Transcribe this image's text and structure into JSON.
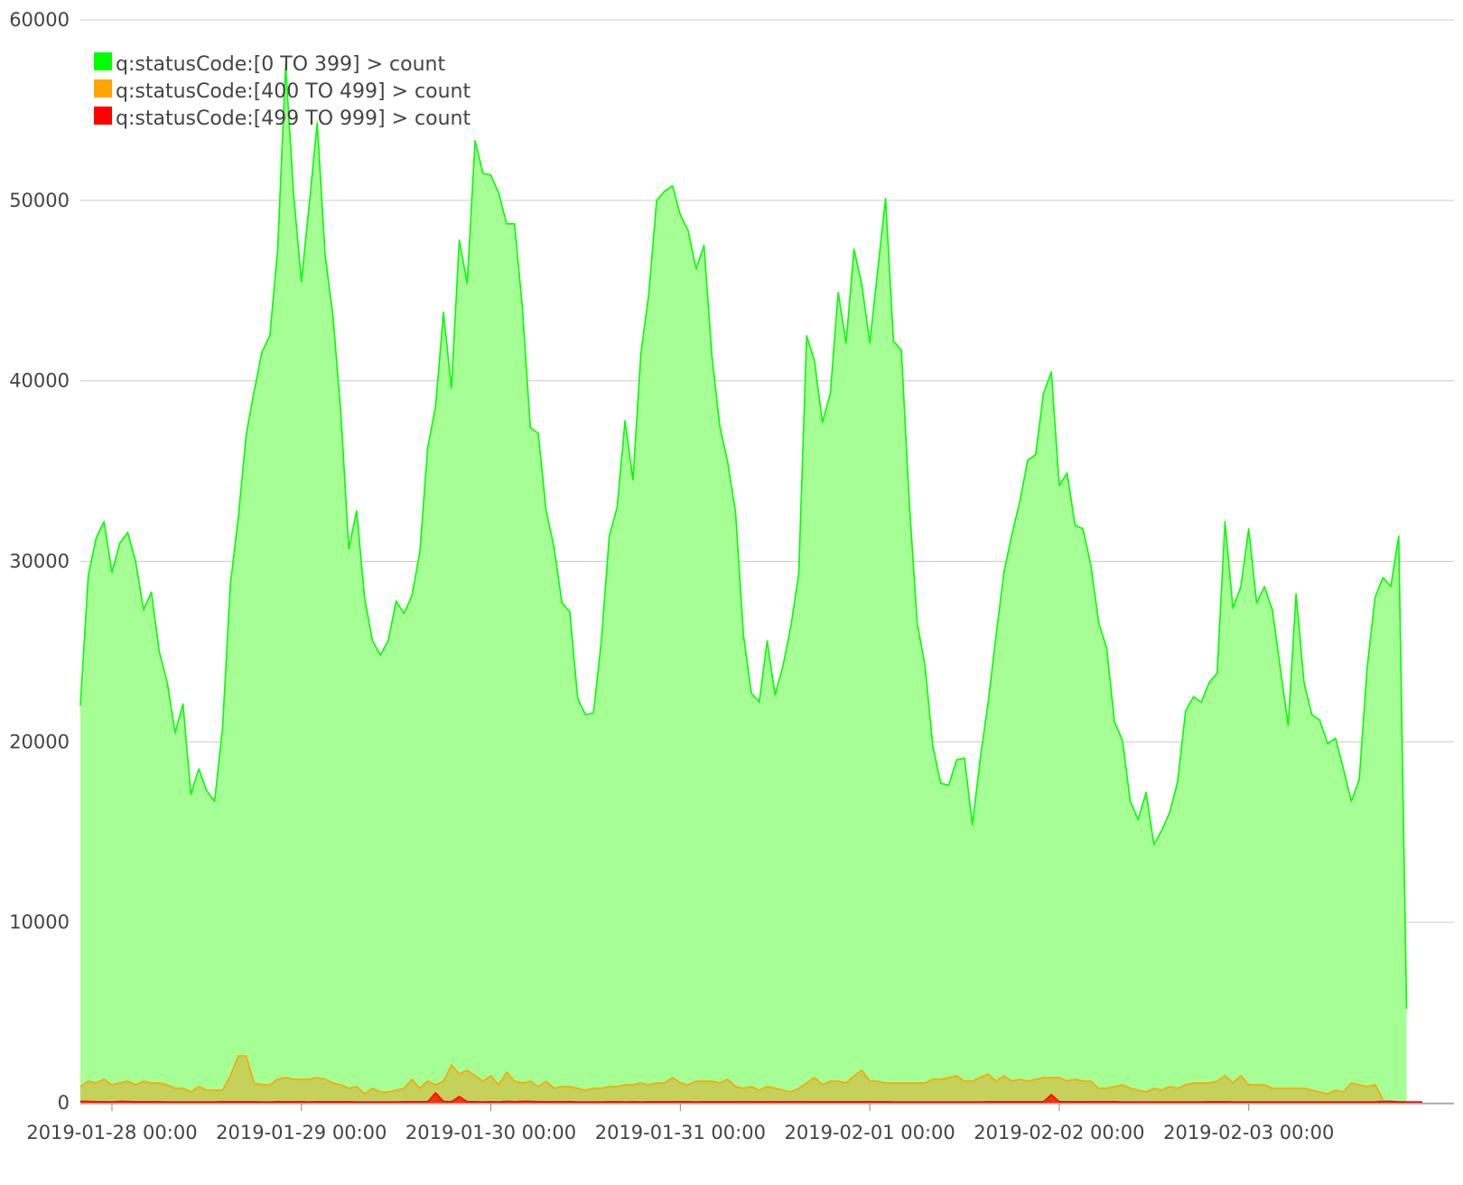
{
  "chart_data": {
    "type": "area",
    "title": "",
    "xlabel": "",
    "ylabel": "",
    "x_start": "2019-01-27 20:00",
    "x_step_hours": 1,
    "xlim": [
      "2019-01-27 20:00",
      "2019-02-04 02:00"
    ],
    "ylim": [
      0,
      60000
    ],
    "yticks": [
      0,
      10000,
      20000,
      30000,
      40000,
      50000,
      60000
    ],
    "xticks": [
      "2019-01-28 00:00",
      "2019-01-29 00:00",
      "2019-01-30 00:00",
      "2019-01-31 00:00",
      "2019-02-01 00:00",
      "2019-02-02 00:00",
      "2019-02-03 00:00"
    ],
    "grid": true,
    "legend_position": "top-left",
    "series": [
      {
        "name": "q:statusCode:[0 TO 399] > count",
        "color": "#00ff00",
        "fill": "#a6ff94",
        "values": [
          22000,
          29200,
          31300,
          32200,
          29400,
          31000,
          31600,
          30000,
          27300,
          28300,
          25000,
          23300,
          20500,
          22100,
          17100,
          18500,
          17300,
          16700,
          20700,
          28700,
          32400,
          37000,
          39400,
          41600,
          42500,
          47300,
          57500,
          50400,
          45500,
          49800,
          54300,
          47000,
          43600,
          38200,
          30700,
          32800,
          28000,
          25600,
          24800,
          25600,
          27800,
          27100,
          28100,
          30500,
          36300,
          38600,
          43800,
          39600,
          47800,
          45400,
          53300,
          51500,
          51400,
          50400,
          48700,
          48700,
          44000,
          37400,
          37100,
          32800,
          30800,
          27700,
          27200,
          22400,
          21500,
          21600,
          25600,
          31400,
          33000,
          37800,
          34500,
          41500,
          44800,
          50000,
          50500,
          50800,
          49200,
          48300,
          46200,
          47500,
          41400,
          37500,
          35500,
          32700,
          25900,
          22700,
          22200,
          25600,
          22600,
          24200,
          26400,
          29300,
          42500,
          41100,
          37700,
          39300,
          44900,
          42100,
          47300,
          45300,
          42100,
          46100,
          50100,
          42200,
          41700,
          33300,
          26600,
          24200,
          19700,
          17700,
          17600,
          19000,
          19100,
          15400,
          19100,
          22200,
          25900,
          29400,
          31500,
          33300,
          35600,
          35900,
          39300,
          40500,
          34200,
          34900,
          32000,
          31800,
          29800,
          26600,
          25200,
          21100,
          20100,
          16700,
          15700,
          17200,
          14300,
          15100,
          16100,
          17800,
          21700,
          22500,
          22200,
          23300,
          23800,
          32200,
          27400,
          28600,
          31800,
          27700,
          28600,
          27300,
          24100,
          20900,
          28200,
          23300,
          21500,
          21200,
          19900,
          20200,
          18500,
          16700,
          17900,
          24100,
          28000,
          29100,
          28600,
          31400,
          5200
        ]
      },
      {
        "name": "q:statusCode:[400 TO 499] > count",
        "color": "#ffa500",
        "fill": "#c4d15a",
        "values": [
          900,
          1200,
          1100,
          1300,
          1000,
          1100,
          1200,
          1000,
          1200,
          1100,
          1100,
          1000,
          800,
          800,
          600,
          900,
          700,
          700,
          700,
          1500,
          2600,
          2600,
          1100,
          1000,
          1000,
          1300,
          1400,
          1300,
          1300,
          1300,
          1400,
          1300,
          1100,
          1000,
          800,
          900,
          500,
          800,
          600,
          600,
          700,
          800,
          1300,
          800,
          1200,
          1000,
          1200,
          2100,
          1600,
          1800,
          1500,
          1200,
          1500,
          1000,
          1700,
          1200,
          1100,
          1200,
          900,
          1200,
          800,
          900,
          900,
          800,
          700,
          800,
          800,
          900,
          900,
          1000,
          1000,
          1100,
          1000,
          1100,
          1100,
          1400,
          1100,
          1000,
          1200,
          1200,
          1200,
          1100,
          1300,
          900,
          800,
          900,
          700,
          900,
          800,
          700,
          600,
          800,
          1100,
          1400,
          1000,
          1200,
          1200,
          1100,
          1500,
          1800,
          1200,
          1200,
          1100,
          1100,
          1100,
          1100,
          1100,
          1100,
          1300,
          1300,
          1400,
          1500,
          1200,
          1200,
          1400,
          1600,
          1200,
          1500,
          1200,
          1300,
          1200,
          1300,
          1400,
          1400,
          1400,
          1200,
          1300,
          1200,
          1200,
          800,
          800,
          900,
          1000,
          800,
          700,
          600,
          800,
          700,
          900,
          800,
          1000,
          1100,
          1100,
          1100,
          1200,
          1500,
          1100,
          1500,
          1000,
          1000,
          1000,
          800,
          800,
          800,
          800,
          800,
          700,
          600,
          500,
          700,
          600,
          1100,
          1000,
          900,
          1000,
          200
        ]
      },
      {
        "name": "q:statusCode:[499 TO 999] > count",
        "color": "#ff0000",
        "fill": "#ff3300",
        "values": [
          80,
          80,
          60,
          60,
          50,
          80,
          70,
          60,
          60,
          60,
          60,
          50,
          50,
          50,
          50,
          50,
          50,
          50,
          60,
          60,
          60,
          60,
          60,
          50,
          50,
          60,
          60,
          60,
          60,
          50,
          60,
          60,
          60,
          60,
          60,
          50,
          50,
          50,
          50,
          50,
          50,
          60,
          60,
          60,
          60,
          550,
          80,
          60,
          350,
          60,
          60,
          50,
          60,
          50,
          80,
          60,
          80,
          80,
          60,
          60,
          60,
          60,
          60,
          50,
          50,
          50,
          50,
          60,
          60,
          50,
          60,
          50,
          60,
          60,
          60,
          60,
          60,
          60,
          50,
          60,
          60,
          60,
          60,
          60,
          60,
          60,
          60,
          60,
          60,
          60,
          60,
          60,
          60,
          60,
          60,
          60,
          60,
          60,
          60,
          60,
          60,
          60,
          60,
          50,
          50,
          50,
          50,
          50,
          50,
          50,
          50,
          50,
          50,
          50,
          50,
          60,
          60,
          60,
          60,
          60,
          60,
          60,
          60,
          450,
          60,
          60,
          60,
          60,
          60,
          60,
          60,
          60,
          50,
          50,
          50,
          50,
          50,
          50,
          50,
          50,
          50,
          50,
          50,
          60,
          60,
          60,
          50,
          50,
          50,
          50,
          50,
          50,
          50,
          50,
          50,
          50,
          50,
          50,
          50,
          50,
          50,
          50,
          50,
          50,
          50,
          80,
          80,
          60,
          50,
          50,
          50
        ]
      }
    ]
  }
}
